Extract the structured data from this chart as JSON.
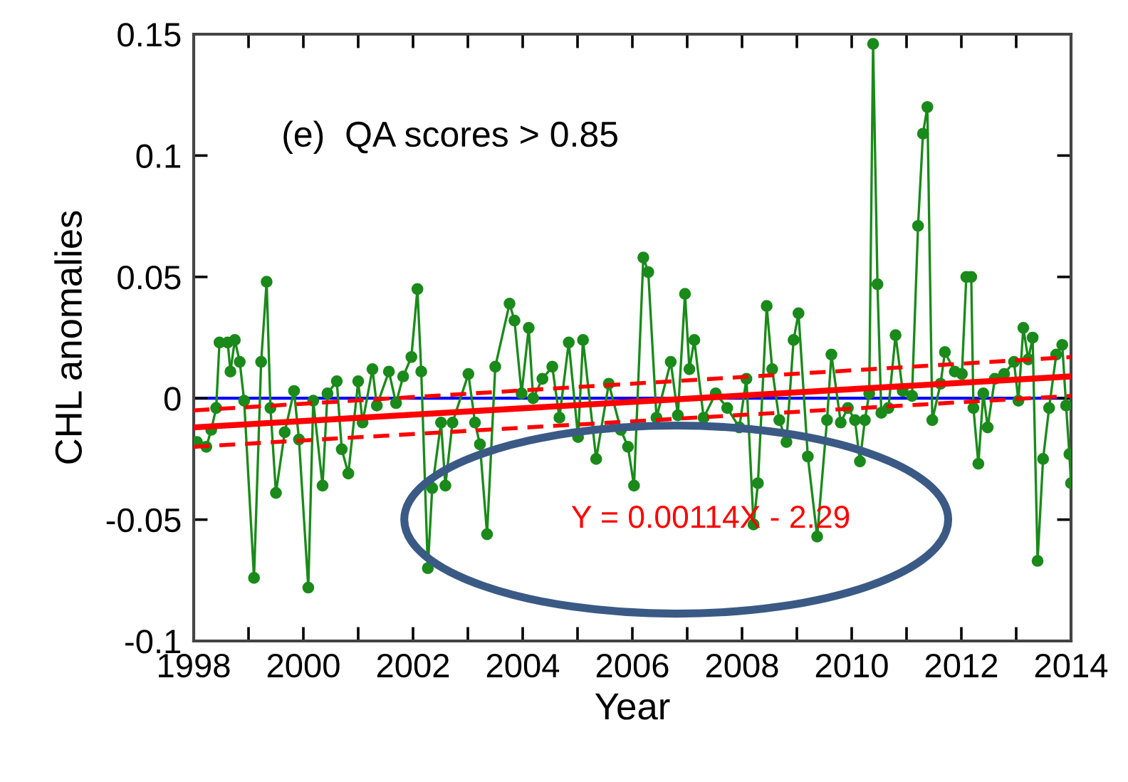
{
  "chart_data": {
    "type": "line",
    "xlabel": "Year",
    "ylabel": "CHL anomalies",
    "annotations": [
      "(e)  QA scores > 0.85",
      "Y = 0.00114X - 2.29"
    ],
    "xlim": [
      1998,
      2014
    ],
    "ylim": [
      -0.1,
      0.15
    ],
    "xticks": [
      1998,
      {
        "value": 1999,
        "label": null
      },
      2000,
      {
        "value": 2001,
        "label": null
      },
      2002,
      {
        "value": 2003,
        "label": null
      },
      2004,
      {
        "value": 2005,
        "label": null
      },
      2006,
      {
        "value": 2007,
        "label": null
      },
      2008,
      {
        "value": 2009,
        "label": null
      },
      2010,
      {
        "value": 2011,
        "label": null
      },
      2012,
      {
        "value": 2013,
        "label": null
      },
      2014
    ],
    "yticks": [
      -0.1,
      -0.05,
      0,
      0.05,
      0.1,
      0.15
    ],
    "grid": false,
    "legend": false,
    "ref_lines": [
      {
        "axis": "y",
        "value": 0,
        "color": "#0000ff",
        "line_style": "solid"
      }
    ],
    "series": [
      {
        "color": "#1a8a1a",
        "marker": "circle",
        "line_style": "solid",
        "x": [
          1998.06,
          1998.23,
          1998.32,
          1998.41,
          1998.47,
          1998.62,
          1998.67,
          1998.75,
          1998.84,
          1998.92,
          1999.1,
          1999.23,
          1999.33,
          1999.4,
          1999.5,
          1999.66,
          1999.83,
          1999.92,
          2000.09,
          2000.18,
          2000.35,
          2000.44,
          2000.61,
          2000.7,
          2000.82,
          2001.0,
          2001.08,
          2001.26,
          2001.34,
          2001.56,
          2001.69,
          2001.82,
          2001.97,
          2002.08,
          2002.15,
          2002.27,
          2002.35,
          2002.51,
          2002.59,
          2002.72,
          2003.01,
          2003.13,
          2003.22,
          2003.35,
          2003.5,
          2003.76,
          2003.85,
          2003.98,
          2004.11,
          2004.19,
          2004.36,
          2004.54,
          2004.67,
          2004.84,
          2005.01,
          2005.1,
          2005.34,
          2005.57,
          2005.79,
          2005.92,
          2006.03,
          2006.2,
          2006.29,
          2006.44,
          2006.7,
          2006.83,
          2006.96,
          2007.04,
          2007.13,
          2007.3,
          2007.52,
          2007.73,
          2007.95,
          2008.08,
          2008.21,
          2008.29,
          2008.45,
          2008.55,
          2008.68,
          2008.81,
          2008.94,
          2009.03,
          2009.2,
          2009.37,
          2009.55,
          2009.63,
          2009.8,
          2009.93,
          2010.06,
          2010.15,
          2010.24,
          2010.32,
          2010.39,
          2010.47,
          2010.54,
          2010.67,
          2010.8,
          2010.93,
          2011.1,
          2011.21,
          2011.3,
          2011.38,
          2011.47,
          2011.62,
          2011.7,
          2011.88,
          2012.01,
          2012.09,
          2012.18,
          2012.22,
          2012.31,
          2012.4,
          2012.48,
          2012.61,
          2012.78,
          2012.96,
          2013.04,
          2013.13,
          2013.22,
          2013.3,
          2013.39,
          2013.49,
          2013.6,
          2013.73,
          2013.84,
          2013.91,
          2013.97,
          2014.0
        ],
        "values": [
          -0.018,
          -0.02,
          -0.013,
          -0.004,
          0.023,
          0.023,
          0.011,
          0.024,
          0.015,
          -0.001,
          -0.074,
          0.015,
          0.048,
          -0.004,
          -0.039,
          -0.014,
          0.003,
          -0.017,
          -0.078,
          -0.001,
          -0.036,
          0.002,
          0.007,
          -0.021,
          -0.031,
          0.007,
          -0.01,
          0.012,
          -0.003,
          0.011,
          -0.002,
          0.009,
          0.017,
          0.045,
          0.011,
          -0.07,
          -0.037,
          -0.01,
          -0.036,
          -0.01,
          0.01,
          -0.01,
          -0.019,
          -0.056,
          0.013,
          0.039,
          0.032,
          0.002,
          0.029,
          0.0,
          0.008,
          0.013,
          -0.008,
          0.023,
          -0.016,
          0.024,
          -0.025,
          0.006,
          -0.013,
          -0.02,
          -0.036,
          0.058,
          0.052,
          -0.008,
          0.015,
          -0.007,
          0.043,
          0.012,
          0.024,
          -0.008,
          0.002,
          -0.004,
          -0.012,
          0.008,
          -0.052,
          -0.035,
          0.038,
          0.012,
          -0.009,
          -0.018,
          0.024,
          0.035,
          -0.024,
          -0.057,
          -0.009,
          0.018,
          -0.01,
          -0.004,
          -0.009,
          -0.026,
          -0.009,
          0.002,
          0.146,
          0.047,
          -0.006,
          -0.004,
          0.026,
          0.003,
          0.001,
          0.071,
          0.109,
          0.12,
          -0.009,
          0.006,
          0.019,
          0.011,
          0.01,
          0.05,
          0.05,
          -0.004,
          -0.027,
          0.002,
          -0.012,
          0.008,
          0.01,
          0.015,
          -0.001,
          0.029,
          0.016,
          0.025,
          -0.067,
          -0.025,
          -0.004,
          0.018,
          0.022,
          -0.003,
          -0.023,
          -0.035
        ]
      },
      {
        "color": "#ff0000",
        "marker": "none",
        "line_style": "solid",
        "x": [
          1998,
          2014
        ],
        "values": [
          -0.012,
          0.009
        ]
      },
      {
        "color": "#ff0000",
        "marker": "none",
        "line_style": "dashed",
        "x": [
          1998,
          2014
        ],
        "values": [
          -0.02,
          0.001
        ]
      },
      {
        "color": "#ff0000",
        "marker": "none",
        "line_style": "dashed",
        "x": [
          1998,
          2014
        ],
        "values": [
          -0.005,
          0.017
        ]
      }
    ]
  }
}
